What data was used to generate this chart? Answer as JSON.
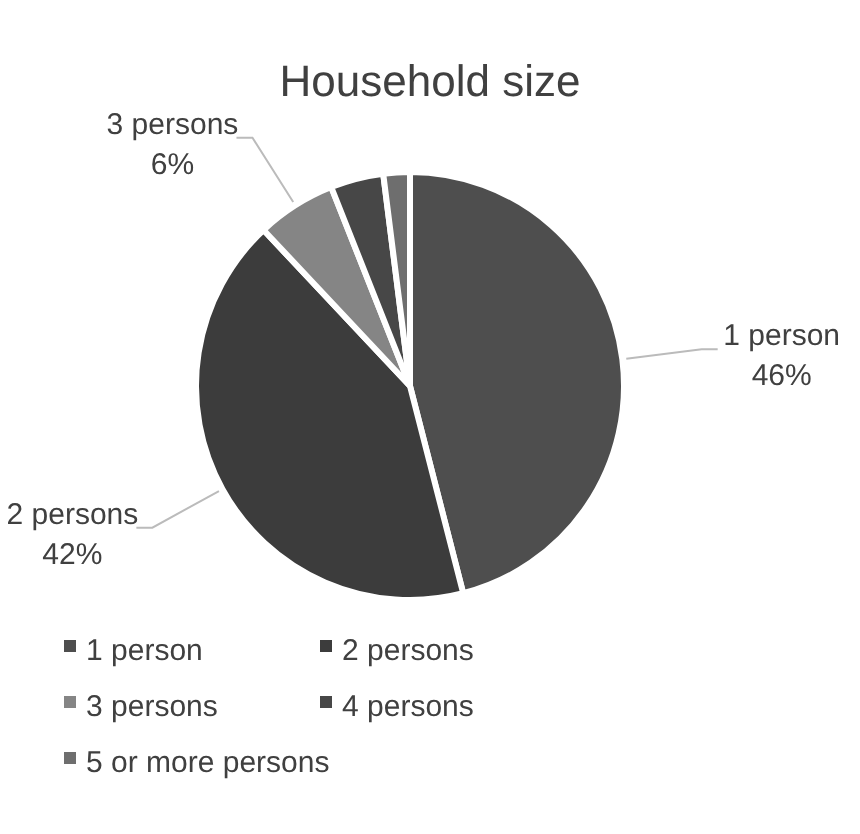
{
  "chart_data": {
    "type": "pie",
    "title": "Household size",
    "categories": [
      "1 person",
      "2 persons",
      "3 persons",
      "4 persons",
      "5 or more persons"
    ],
    "values": [
      46,
      42,
      6,
      4,
      2
    ],
    "colors": [
      "#4e4e4e",
      "#3c3c3c",
      "#858585",
      "#474747",
      "#6e6e6e"
    ],
    "value_labels": [
      "46%",
      "42%",
      "6%",
      null,
      null
    ],
    "legend": "bottom"
  }
}
